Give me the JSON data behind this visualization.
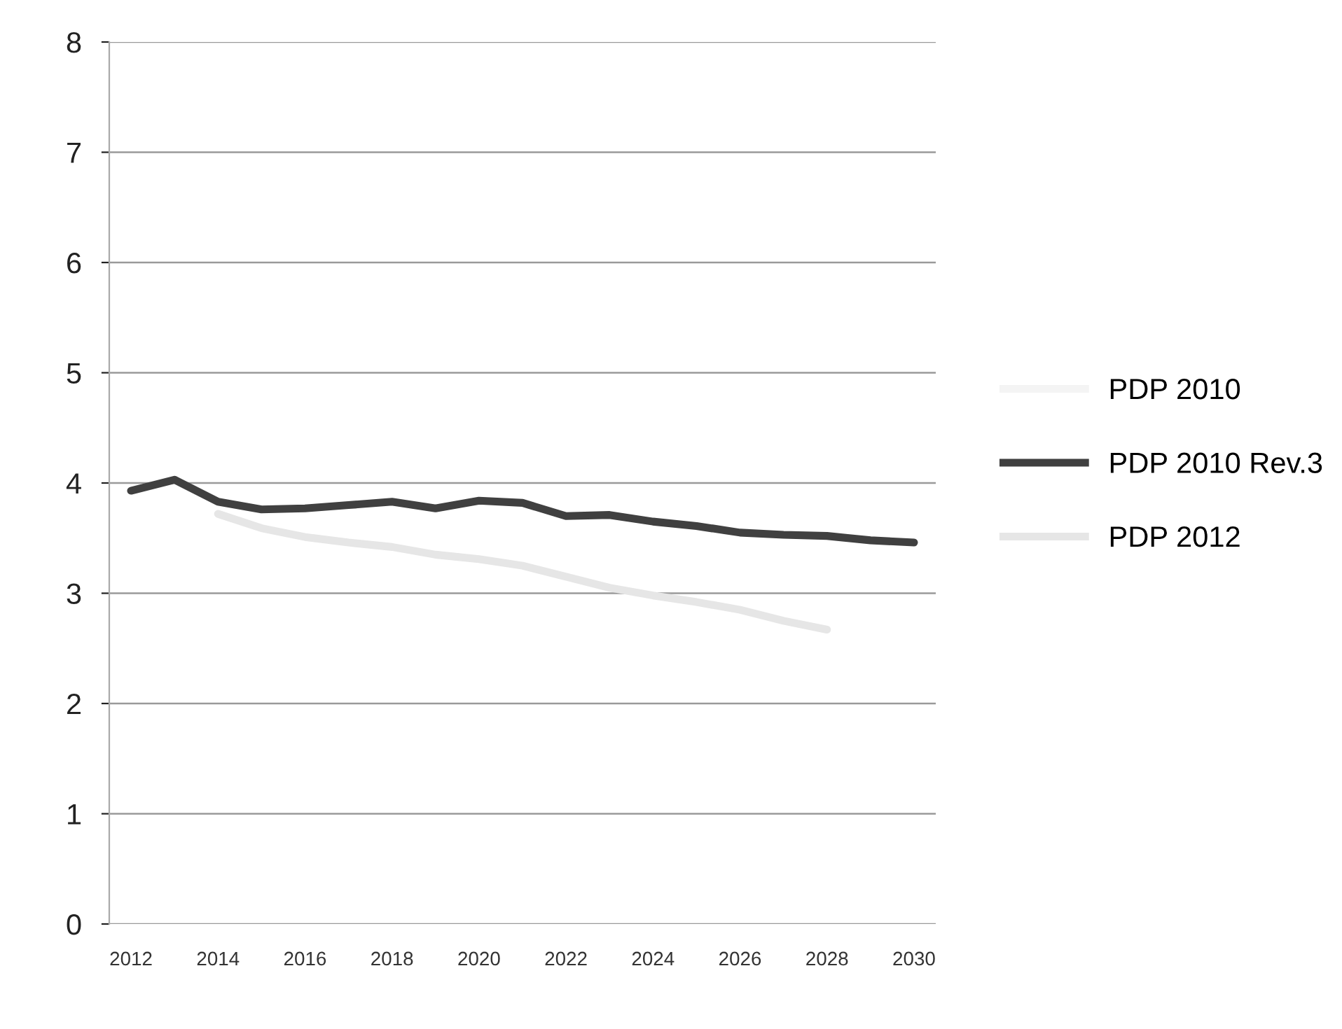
{
  "chart_data": {
    "type": "line",
    "x": [
      2012,
      2013,
      2014,
      2015,
      2016,
      2017,
      2018,
      2019,
      2020,
      2021,
      2022,
      2023,
      2024,
      2025,
      2026,
      2027,
      2028,
      2029,
      2030
    ],
    "series": [
      {
        "name": "PDP 2010",
        "color": "#f4f4f4",
        "values": [
          null,
          null,
          null,
          null,
          null,
          null,
          null,
          null,
          null,
          null,
          null,
          null,
          null,
          null,
          null,
          null,
          null,
          null,
          null
        ]
      },
      {
        "name": "PDP 2010 Rev.3",
        "color": "#404040",
        "values": [
          3.93,
          4.03,
          3.83,
          3.76,
          3.77,
          3.8,
          3.83,
          3.77,
          3.84,
          3.82,
          3.7,
          3.71,
          3.65,
          3.61,
          3.55,
          3.53,
          3.52,
          3.48,
          3.46
        ]
      },
      {
        "name": "PDP 2012",
        "color": "#e6e6e6",
        "values": [
          null,
          null,
          3.72,
          3.59,
          3.51,
          3.46,
          3.42,
          3.35,
          3.31,
          3.25,
          3.15,
          3.05,
          2.98,
          2.92,
          2.85,
          2.75,
          2.67,
          null,
          null
        ]
      }
    ],
    "xlim": [
      2011.5,
      2030.5
    ],
    "xticks": [
      2012,
      2014,
      2016,
      2018,
      2020,
      2022,
      2024,
      2026,
      2028,
      2030
    ],
    "ylim": [
      0,
      8
    ],
    "yticks": [
      0,
      1,
      2,
      3,
      4,
      5,
      6,
      7,
      8
    ],
    "grid": "y",
    "legend": "right",
    "marker": "none",
    "line_style": "solid"
  }
}
